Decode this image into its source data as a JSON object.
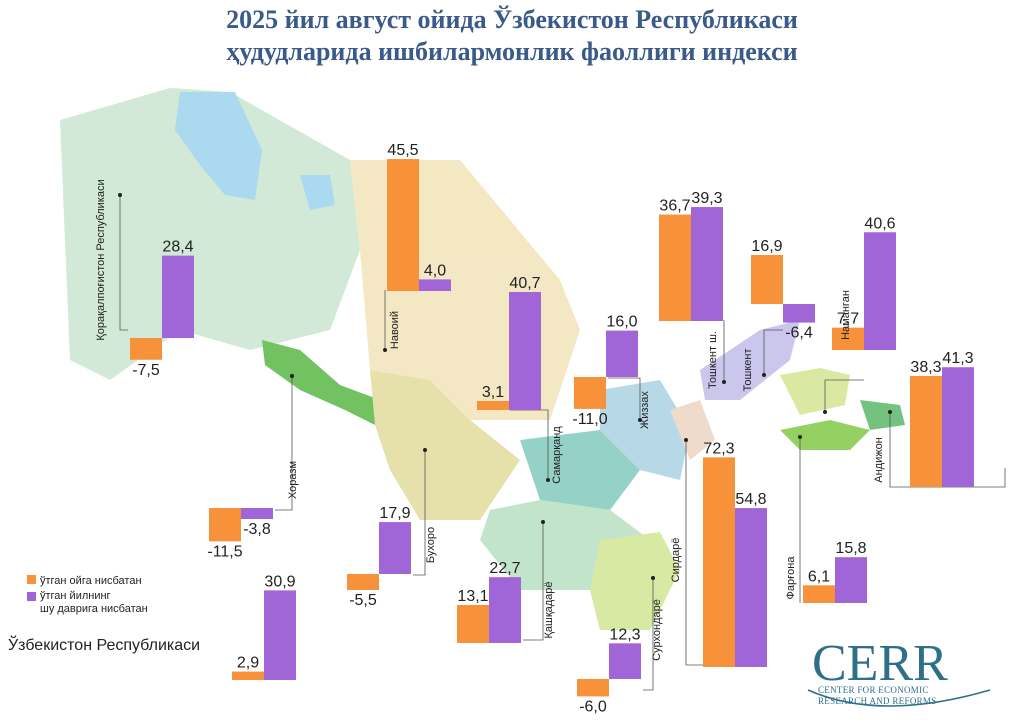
{
  "title": {
    "line1": "2025 йил август ойида Ўзбекистон Республикаси",
    "line2": "ҳудудларида ишбилармонлик фаоллиги индекси"
  },
  "colors": {
    "month": "#f7923a",
    "year": "#a065d6",
    "title": "#3a5a8a",
    "logo": "#2f6f8a"
  },
  "legend": {
    "month_label": "ўтган ойга нисбатан",
    "year_label_1": "ўтган йилнинг",
    "year_label_2": "шу даврига нисбатан"
  },
  "country_label": "Ўзбекистон Республикаси",
  "logo": {
    "name": "CERR",
    "line1": "CENTER FOR ECONOMIC",
    "line2": "RESEARCH AND REFORMS"
  },
  "chart_data": {
    "type": "bar",
    "unit_note": "",
    "series": [
      {
        "name": "ўтган ойга нисбатан",
        "key": "month"
      },
      {
        "name": "ўтган йилнинг шу даврига нисбатан",
        "key": "year"
      }
    ],
    "regions": [
      {
        "name": "Қорақалпоғистон Республикаси",
        "month": -7.5,
        "year": 28.4,
        "month_label": "-7,5",
        "year_label": "28,4"
      },
      {
        "name": "Навоий",
        "month": 45.5,
        "year": 4.0,
        "month_label": "45,5",
        "year_label": "4,0"
      },
      {
        "name": "Хоразм",
        "month": -11.5,
        "year": -3.8,
        "month_label": "-11,5",
        "year_label": "-3,8"
      },
      {
        "name": "Бухоро",
        "month": -5.5,
        "year": 17.9,
        "month_label": "-5,5",
        "year_label": "17,9"
      },
      {
        "name": "Самарқанд",
        "month": 3.1,
        "year": 40.7,
        "month_label": "3,1",
        "year_label": "40,7"
      },
      {
        "name": "Қашқадарё",
        "month": 13.1,
        "year": 22.7,
        "month_label": "13,1",
        "year_label": "22,7"
      },
      {
        "name": "Жиззах",
        "month": -11.0,
        "year": 16.0,
        "month_label": "-11,0",
        "year_label": "16,0"
      },
      {
        "name": "Сурхондарё",
        "month": -6.0,
        "year": 12.3,
        "month_label": "-6,0",
        "year_label": "12,3"
      },
      {
        "name": "Сирдарё",
        "month": 72.3,
        "year": 54.8,
        "month_label": "72,3",
        "year_label": "54,8"
      },
      {
        "name": "Тошкент ш.",
        "month": 36.7,
        "year": 39.3,
        "month_label": "36,7",
        "year_label": "39,3"
      },
      {
        "name": "Тошкент",
        "month": 16.9,
        "year": -6.4,
        "month_label": "16,9",
        "year_label": "-6,4"
      },
      {
        "name": "Наманган",
        "month": 7.7,
        "year": 40.6,
        "month_label": "7,7",
        "year_label": "40,6"
      },
      {
        "name": "Андижон",
        "month": 38.3,
        "year": 41.3,
        "month_label": "38,3",
        "year_label": "41,3"
      },
      {
        "name": "Фарғона",
        "month": 6.1,
        "year": 15.8,
        "month_label": "6,1",
        "year_label": "15,8"
      },
      {
        "name": "Ўзбекистон Республикаси",
        "month": 2.9,
        "year": 30.9,
        "month_label": "2,9",
        "year_label": "30,9"
      }
    ]
  }
}
